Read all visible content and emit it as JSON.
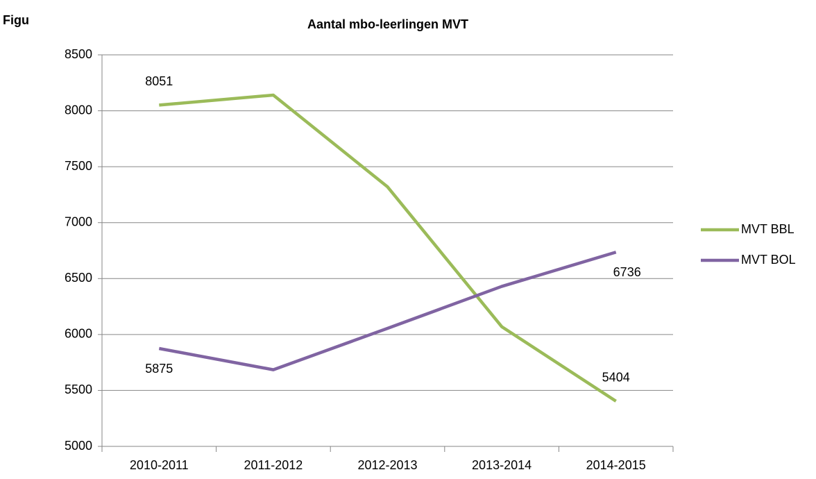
{
  "caption": "Figu",
  "chart_data": {
    "type": "line",
    "title": "Aantal mbo-leerlingen MVT",
    "categories": [
      "2010-2011",
      "2011-2012",
      "2012-2013",
      "2013-2014",
      "2014-2015"
    ],
    "series": [
      {
        "name": "MVT BBL",
        "color": "#9bbb59",
        "values": [
          8051,
          8140,
          7320,
          6070,
          5404
        ],
        "value_labels": [
          "8051",
          null,
          null,
          null,
          "5404"
        ]
      },
      {
        "name": "MVT BOL",
        "color": "#8064a2",
        "values": [
          5875,
          5685,
          6055,
          6430,
          6736
        ],
        "value_labels": [
          "5875",
          null,
          null,
          null,
          "6736"
        ]
      }
    ],
    "ylim": [
      5000,
      8500
    ],
    "yticks": [
      5000,
      5500,
      6000,
      6500,
      7000,
      7500,
      8000,
      8500
    ],
    "grid": true,
    "legend": "right"
  }
}
